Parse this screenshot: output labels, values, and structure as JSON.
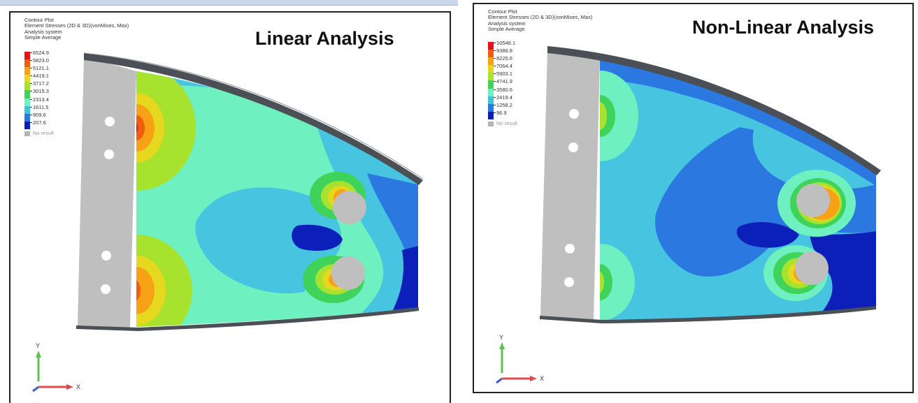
{
  "left": {
    "header": [
      "Contour Plot",
      "Element Stresses (2D & 3D)(vonMises, Max)",
      "Analysis system",
      "Simple Average"
    ],
    "title": "Linear Analysis",
    "legend": [
      "6524.9",
      "5823.0",
      "5121.1",
      "4419.1",
      "3717.2",
      "3015.3",
      "2313.4",
      "1611.5",
      "909.6",
      "207.6"
    ],
    "no_result": "No result",
    "axes": {
      "y": "Y",
      "x": "X"
    }
  },
  "right": {
    "header": [
      "Contour Plot",
      "Element Stresses (2D & 3D)(vonMises, Max)",
      "Analysis system",
      "Simple Average"
    ],
    "title": "Non-Linear Analysis",
    "legend": [
      "10548.1",
      "9386.8",
      "8225.6",
      "7064.4",
      "5903.1",
      "4741.9",
      "3580.6",
      "2419.4",
      "1258.2",
      "96.9"
    ],
    "no_result": "No result",
    "axes": {
      "y": "Y",
      "x": "X"
    }
  },
  "legend_colors": [
    "#e8121a",
    "#f25c0f",
    "#f7a117",
    "#e6d81f",
    "#a6e22e",
    "#3fd35b",
    "#6ff0c0",
    "#3fc2dc",
    "#2a78e0",
    "#0c1fb8"
  ],
  "colors": {
    "plate_gray": "#bfbfbf",
    "flange_dark": "#4b4f56",
    "aqua": "#6ff0c0",
    "cyan": "#47c5e0",
    "mid_blue": "#2a78e0",
    "deep_blue": "#0c1fb8"
  }
}
